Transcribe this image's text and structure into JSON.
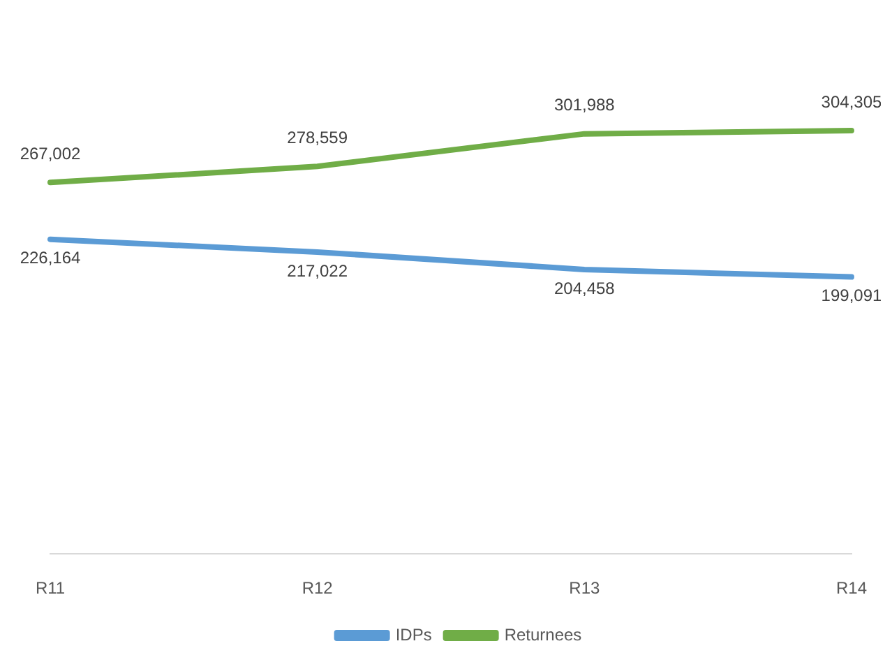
{
  "chart_data": {
    "type": "line",
    "categories": [
      "R11",
      "R12",
      "R13",
      "R14"
    ],
    "series": [
      {
        "name": "IDPs",
        "color": "#5b9bd5",
        "values": [
          226164,
          217022,
          204458,
          199091
        ],
        "value_labels": [
          "226,164",
          "217,022",
          "204,458",
          "199,091"
        ]
      },
      {
        "name": "Returnees",
        "color": "#70ad47",
        "values": [
          267002,
          278559,
          301988,
          304305
        ],
        "value_labels": [
          "267,002",
          "278,559",
          "301,988",
          "304,305"
        ]
      }
    ],
    "legend": "bottom"
  }
}
